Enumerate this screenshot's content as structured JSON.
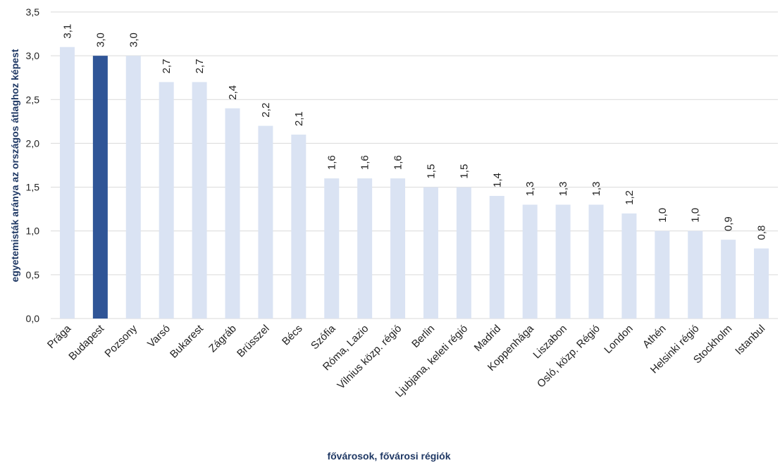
{
  "chart_data": {
    "type": "bar",
    "title": "",
    "xlabel": "fővárosok, fővárosi régiók",
    "ylabel": "egyetemisták aránya az országos átlaghoz képest",
    "ylim": [
      0,
      3.5
    ],
    "yticks": [
      "0,0",
      "0,5",
      "1,0",
      "1,5",
      "2,0",
      "2,5",
      "3,0",
      "3,5"
    ],
    "grid": true,
    "categories": [
      "Prága",
      "Budapest",
      "Pozsony",
      "Varsó",
      "Bukarest",
      "Zágráb",
      "Brüsszel",
      "Bécs",
      "Szófia",
      "Róma, Lazio",
      "Vilnius közp. régió",
      "Berlin",
      "Ljubjana, keleti régió",
      "Madrid",
      "Koppenhága",
      "Liszabon",
      "Osló, közp. Régió",
      "London",
      "Athén",
      "Helsinki régió",
      "Stockholm",
      "Istanbul"
    ],
    "values": [
      3.1,
      3.0,
      3.0,
      2.7,
      2.7,
      2.4,
      2.2,
      2.1,
      1.6,
      1.6,
      1.6,
      1.5,
      1.5,
      1.4,
      1.3,
      1.3,
      1.3,
      1.2,
      1.0,
      1.0,
      0.9,
      0.8
    ],
    "value_labels": [
      "3,1",
      "3,0",
      "3,0",
      "2,7",
      "2,7",
      "2,4",
      "2,2",
      "2,1",
      "1,6",
      "1,6",
      "1,6",
      "1,5",
      "1,5",
      "1,4",
      "1,3",
      "1,3",
      "1,3",
      "1,2",
      "1,0",
      "1,0",
      "0,9",
      "0,8"
    ],
    "highlight_category": "Budapest",
    "colors": {
      "bar": "#dae3f3",
      "highlight_bar": "#2f5597",
      "highlight_label": "#2f5597",
      "grid": "#d9d9d9",
      "axis_title": "#1f3864"
    }
  }
}
